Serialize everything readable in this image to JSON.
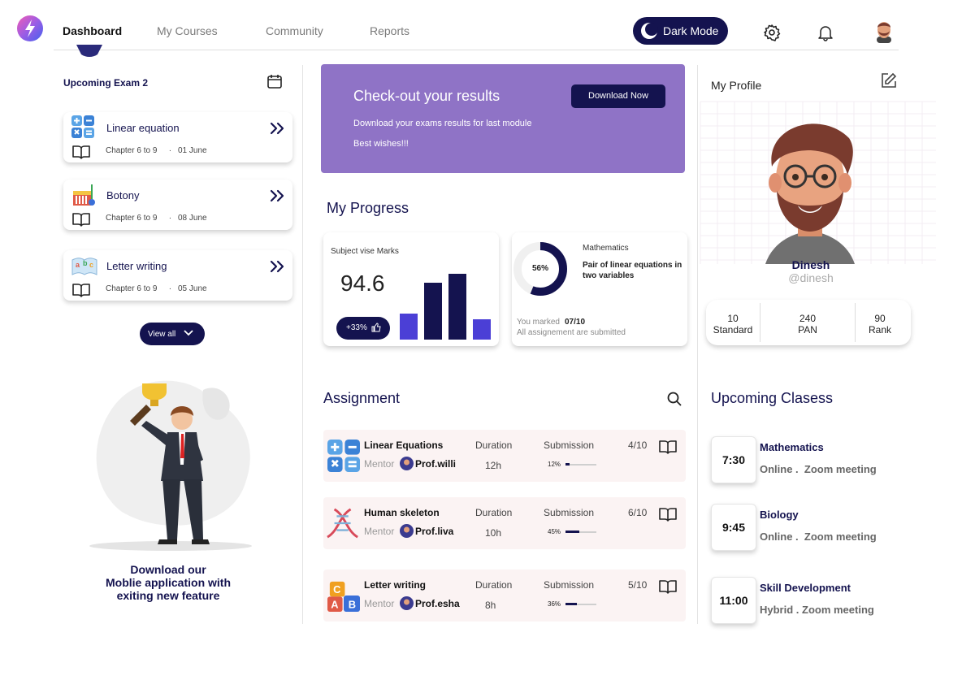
{
  "nav": {
    "items": [
      "Dashboard",
      "My Courses",
      "Community",
      "Reports"
    ],
    "dark_mode": "Dark Mode"
  },
  "upcoming_exams": {
    "title": "Upcoming Exam 2",
    "separator": ".",
    "items": [
      {
        "name": "Linear equation",
        "chapters": "Chapter 6 to 9",
        "date": "01 June"
      },
      {
        "name": "Botony",
        "chapters": "Chapter 6 to 9",
        "date": "08 June"
      },
      {
        "name": "Letter writing",
        "chapters": "Chapter 6 to 9",
        "date": "05 June"
      }
    ],
    "view_all": "View all"
  },
  "promo": {
    "lines": [
      "Download our",
      "Moblie application with",
      "exiting new feature"
    ]
  },
  "banner": {
    "title": "Check-out your results",
    "button": "Download Now",
    "text": "Download your exams results for last module",
    "note": "Best wishes!!!"
  },
  "progress": {
    "title": "My Progress",
    "marks_card": {
      "title": "Subject vise Marks",
      "score": 94.6,
      "change": "+33%",
      "bars": [
        32,
        70,
        81,
        25
      ]
    },
    "subject_card": {
      "percent": {
        "value": 56,
        "label": "56%"
      },
      "subject": "Mathematics",
      "topic": "Pair of linear equations in two variables",
      "marked_prefix": "You marked",
      "marked": "07/10",
      "status": "All assignement are submitted"
    }
  },
  "assignments": {
    "title": "Assignment",
    "mentor_label": "Mentor",
    "duration_label": "Duration",
    "submission_label": "Submission",
    "items": [
      {
        "name": "Linear Equations",
        "mentor": "Prof.willi",
        "duration": "12h",
        "submission": {
          "value": 12,
          "label": "12%"
        },
        "score": "4/10"
      },
      {
        "name": "Human skeleton",
        "mentor": "Prof.liva",
        "duration": "10h",
        "submission": {
          "value": 45,
          "label": "45%"
        },
        "score": "6/10"
      },
      {
        "name": "Letter writing",
        "mentor": "Prof.esha",
        "duration": "8h",
        "submission": {
          "value": 36,
          "label": "36%"
        },
        "score": "5/10"
      }
    ]
  },
  "profile": {
    "title": "My Profile",
    "name": "Dinesh",
    "handle": "@dinesh",
    "stats": [
      {
        "value": "10",
        "label": "Standard"
      },
      {
        "value": "240",
        "label": "PAN"
      },
      {
        "value": "90",
        "label": "Rank"
      }
    ]
  },
  "classes": {
    "title": "Upcoming Clasess",
    "items": [
      {
        "time": "7:30",
        "subject": "Mathematics",
        "detail": "Online .  Zoom meeting"
      },
      {
        "time": "9:45",
        "subject": "Biology",
        "detail": "Online .  Zoom meeting"
      },
      {
        "time": "11:00",
        "subject": "Skill Development",
        "detail": "Hybrid . Zoom meeting"
      }
    ]
  }
}
